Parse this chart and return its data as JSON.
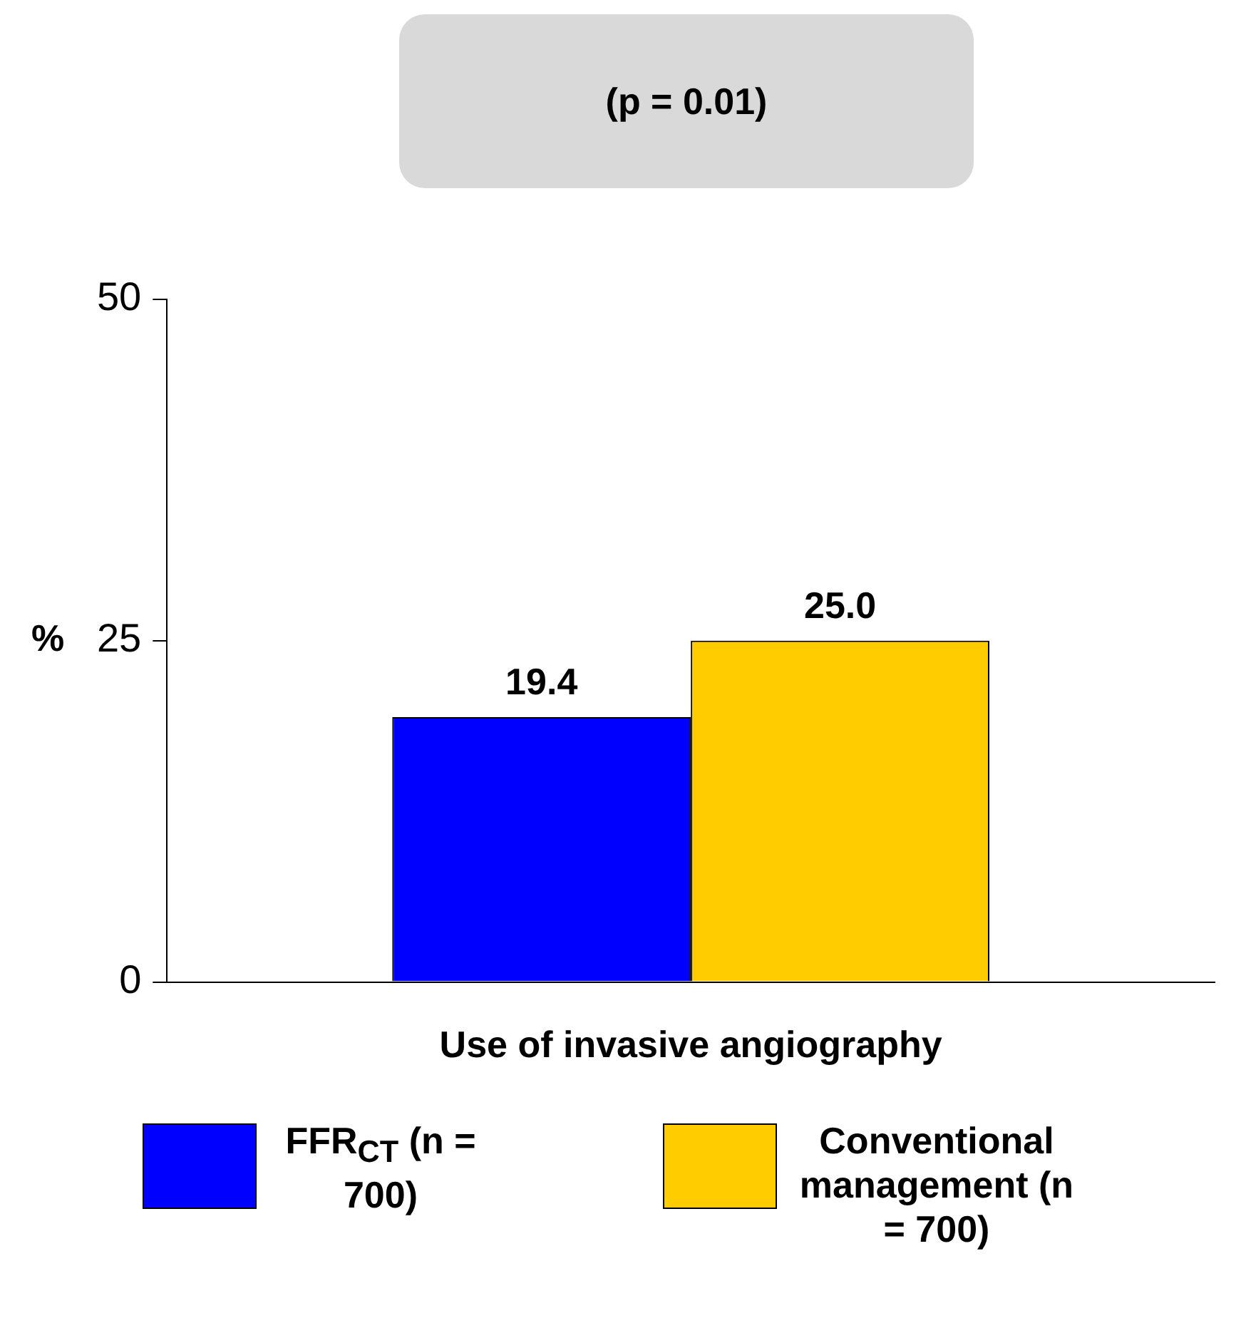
{
  "chart_data": {
    "type": "bar",
    "annotations": [
      "(p = 0.01)"
    ],
    "ylabel": "%",
    "categories": [
      "Use of invasive angiography"
    ],
    "series": [
      {
        "name": "FFR$_{CT}$ (n = 700)",
        "color": "#0000ff",
        "values": [
          19.4
        ],
        "value_labels": [
          "19.4"
        ]
      },
      {
        "name": "Conventional management (n = 700)",
        "color": "#ffcc00",
        "values": [
          25.0
        ],
        "value_labels": [
          "25.0"
        ]
      }
    ],
    "ylim": [
      0,
      50
    ],
    "yticks": [
      0,
      25,
      50
    ],
    "grid": false,
    "legend": "bottom"
  }
}
